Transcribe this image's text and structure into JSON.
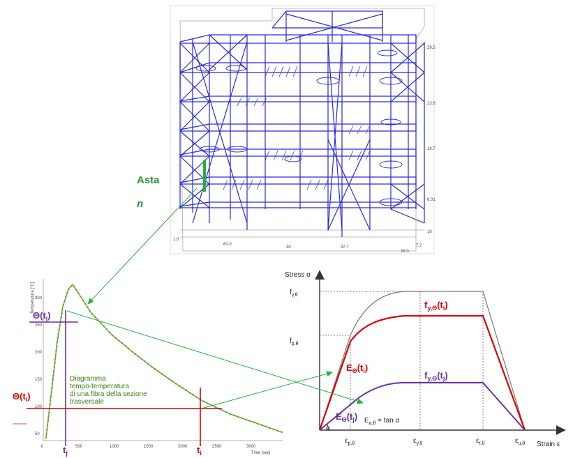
{
  "member_label": {
    "line1": "Asta",
    "line2": "n"
  },
  "temperature_curve": {
    "title_lines": [
      "Diagramma",
      "tempo-temperatura",
      "di una fibra della sezione",
      "trasversale"
    ],
    "ylabel": "Temperatura [°C]",
    "xlabel": "Time [sec]",
    "y_ticks": [
      "50",
      "100",
      "150",
      "200",
      "250",
      "300"
    ],
    "x_ticks": [
      "0",
      "500",
      "1000",
      "1500",
      "2000",
      "2500",
      "3000"
    ],
    "theta_j": "Θ(t",
    "theta_j_sub": "j",
    "theta_i": "Θ(t",
    "theta_i_sub": "i",
    "close": ")",
    "t_j": "t",
    "t_j_sub": "j",
    "t_i": "t",
    "t_i_sub": "i"
  },
  "stress_strain": {
    "ylabel": "Stress σ",
    "xlabel": "Strain ε",
    "fy": "f",
    "fy_sub": "y,θ",
    "fp": "f",
    "fp_sub": "p,θ",
    "eps_p": "ε",
    "eps_p_sub": "p,θ",
    "eps_y": "ε",
    "eps_y_sub": "y,θ",
    "eps_t": "ε",
    "eps_t_sub": "t,θ",
    "eps_u": "ε",
    "eps_u_sub": "u,θ",
    "fy_ti": "f",
    "fy_ti_sub": "y,Θ",
    "fy_ti_arg": "(t",
    "fy_ti_idx": "i",
    "fy_tj": "f",
    "fy_tj_sub": "y,Θ",
    "fy_tj_arg": "(t",
    "fy_tj_idx": "j",
    "E_ti": "E",
    "E_ti_sub": "Θ",
    "E_ti_arg": "(t",
    "E_ti_idx": "i",
    "E_tj": "E",
    "E_tj_sub": "Θ",
    "E_tj_arg": "(t",
    "E_tj_idx": "j",
    "tan_eq": "E",
    "tan_eq_sub": "a,θ",
    "tan_eq_rhs": " = tan α",
    "alpha": "α"
  },
  "colors": {
    "frame": "#2a2ad6",
    "member": "#1db33a",
    "red": "#dd0000",
    "purple": "#6b2fa0",
    "green_arrow": "#1db33a",
    "curve": "#6aa83a",
    "gray": "#777777"
  }
}
